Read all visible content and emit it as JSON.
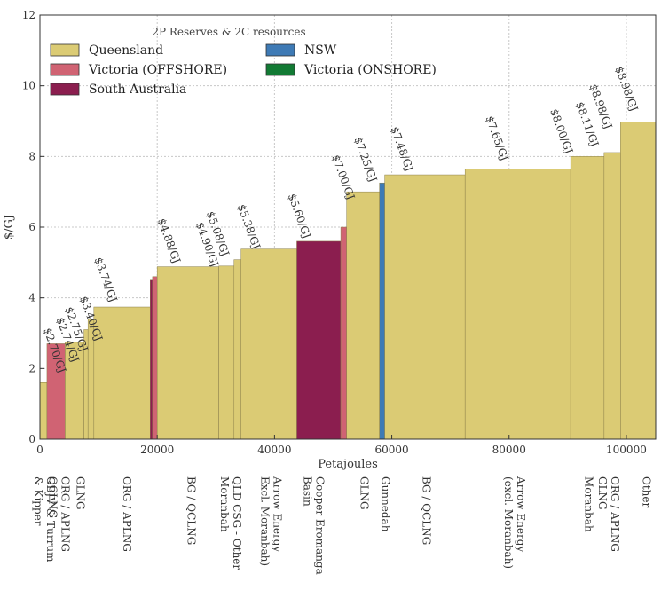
{
  "chart_data": {
    "type": "bar",
    "subtype": "variable-width step supply curve",
    "xlabel": "Petajoules",
    "ylabel": "$/GJ",
    "xlim": [
      0,
      105000
    ],
    "ylim": [
      0,
      12
    ],
    "xticks": [
      0,
      20000,
      40000,
      60000,
      80000,
      100000
    ],
    "yticks": [
      0,
      2,
      4,
      6,
      8,
      10,
      12
    ],
    "grid": true,
    "legend": {
      "title": "2P Reserves & 2C resources",
      "placement": "top-left",
      "entries": [
        {
          "name": "Queensland",
          "color": "#dbcb74"
        },
        {
          "name": "Victoria (OFFSHORE)",
          "color": "#d06373"
        },
        {
          "name": "South Australia",
          "color": "#8b1e4f"
        },
        {
          "name": "NSW",
          "color": "#3e7ab5"
        },
        {
          "name": "Victoria (ONSHORE)",
          "color": "#127a34"
        }
      ]
    },
    "segments": [
      {
        "x0": 0,
        "x1": 1200,
        "y": 1.6,
        "region": "Queensland"
      },
      {
        "x0": 1200,
        "x1": 4300,
        "y": 2.7,
        "region": "Victoria (OFFSHORE)"
      },
      {
        "x0": 4300,
        "x1": 7500,
        "y": 2.74,
        "region": "Queensland"
      },
      {
        "x0": 7500,
        "x1": 8200,
        "y": 3.1,
        "region": "Queensland"
      },
      {
        "x0": 8200,
        "x1": 9200,
        "y": 3.4,
        "region": "Queensland"
      },
      {
        "x0": 9200,
        "x1": 18800,
        "y": 3.74,
        "region": "Queensland"
      },
      {
        "x0": 18800,
        "x1": 19200,
        "y": 4.5,
        "region": "South Australia"
      },
      {
        "x0": 19200,
        "x1": 20000,
        "y": 4.6,
        "region": "Victoria (OFFSHORE)"
      },
      {
        "x0": 20000,
        "x1": 30500,
        "y": 4.88,
        "region": "Queensland"
      },
      {
        "x0": 30500,
        "x1": 33100,
        "y": 4.9,
        "region": "Queensland"
      },
      {
        "x0": 33100,
        "x1": 34300,
        "y": 5.08,
        "region": "Queensland"
      },
      {
        "x0": 34300,
        "x1": 43800,
        "y": 5.38,
        "region": "Queensland"
      },
      {
        "x0": 43800,
        "x1": 51300,
        "y": 5.6,
        "region": "South Australia"
      },
      {
        "x0": 51300,
        "x1": 52300,
        "y": 6.0,
        "region": "Victoria (OFFSHORE)"
      },
      {
        "x0": 52300,
        "x1": 57900,
        "y": 7.0,
        "region": "Queensland"
      },
      {
        "x0": 57900,
        "x1": 58800,
        "y": 7.25,
        "region": "NSW"
      },
      {
        "x0": 58800,
        "x1": 72500,
        "y": 7.48,
        "region": "Queensland"
      },
      {
        "x0": 72500,
        "x1": 90500,
        "y": 7.65,
        "region": "Queensland"
      },
      {
        "x0": 90500,
        "x1": 96200,
        "y": 8.0,
        "region": "Queensland"
      },
      {
        "x0": 96200,
        "x1": 99000,
        "y": 8.11,
        "region": "Queensland"
      },
      {
        "x0": 99000,
        "x1": 105000,
        "y": 8.98,
        "region": "Queensland"
      }
    ],
    "annotations": [
      {
        "text": "$2.70/GJ",
        "x": 600,
        "y": 3.1
      },
      {
        "text": "$2.74/GJ",
        "x": 2800,
        "y": 3.4
      },
      {
        "text": "$2.75/GJ",
        "x": 4300,
        "y": 3.7
      },
      {
        "text": "$3.40/GJ",
        "x": 6800,
        "y": 4.0
      },
      {
        "text": "$3.74/GJ",
        "x": 9300,
        "y": 5.1
      },
      {
        "text": "$4.88/GJ",
        "x": 20100,
        "y": 6.2
      },
      {
        "text": "$4.90/GJ",
        "x": 26600,
        "y": 6.1
      },
      {
        "text": "$5.08/GJ",
        "x": 28400,
        "y": 6.4
      },
      {
        "text": "$5.38/GJ",
        "x": 33700,
        "y": 6.6
      },
      {
        "text": "$5.60/GJ",
        "x": 42300,
        "y": 6.9
      },
      {
        "text": "$7.00/GJ",
        "x": 49800,
        "y": 8.0
      },
      {
        "text": "$7.25/GJ",
        "x": 53600,
        "y": 8.5
      },
      {
        "text": "$7.48/GJ",
        "x": 59800,
        "y": 8.8
      },
      {
        "text": "$7.65/GJ",
        "x": 76000,
        "y": 9.1
      },
      {
        "text": "$8.00/GJ",
        "x": 87000,
        "y": 9.3
      },
      {
        "text": "$8.11/GJ",
        "x": 91400,
        "y": 9.5
      },
      {
        "text": "$8.98/GJ",
        "x": 93700,
        "y": 10.0
      },
      {
        "text": "$8.98/GJ",
        "x": 98100,
        "y": 10.5
      }
    ],
    "project_labels": [
      {
        "text": "GBJV & Turrum",
        "x": 1200,
        "sub": "& Kipper"
      },
      {
        "text": "ORG / APLNG",
        "x": 3700,
        "sub": "QCLNG"
      },
      {
        "text": "GLNG",
        "x": 6300,
        "sub": ""
      },
      {
        "text": "ORG / APLNG",
        "x": 14200,
        "sub": ""
      },
      {
        "text": "BG / QCLNG",
        "x": 25200,
        "sub": ""
      },
      {
        "text": "QLD CSG - Other",
        "x": 33000,
        "sub": "Moranbah"
      },
      {
        "text": "Arrow Energy",
        "x": 39900,
        "sub": "Excl. Moranbah)"
      },
      {
        "text": "Cooper Eromanga",
        "x": 47100,
        "sub": "Basin"
      },
      {
        "text": "GLNG",
        "x": 54700,
        "sub": ""
      },
      {
        "text": "Gunnedah",
        "x": 58300,
        "sub": ""
      },
      {
        "text": "BG / QCLNG",
        "x": 65300,
        "sub": ""
      },
      {
        "text": "Arrow Energy",
        "x": 81400,
        "sub": "(excl. Moranbah)"
      },
      {
        "text": "Moranbah",
        "x": 93000,
        "sub": ""
      },
      {
        "text": "ORG / APLNG",
        "x": 97400,
        "sub": "GLNG"
      },
      {
        "text": "Other",
        "x": 102800,
        "sub": ""
      }
    ]
  }
}
